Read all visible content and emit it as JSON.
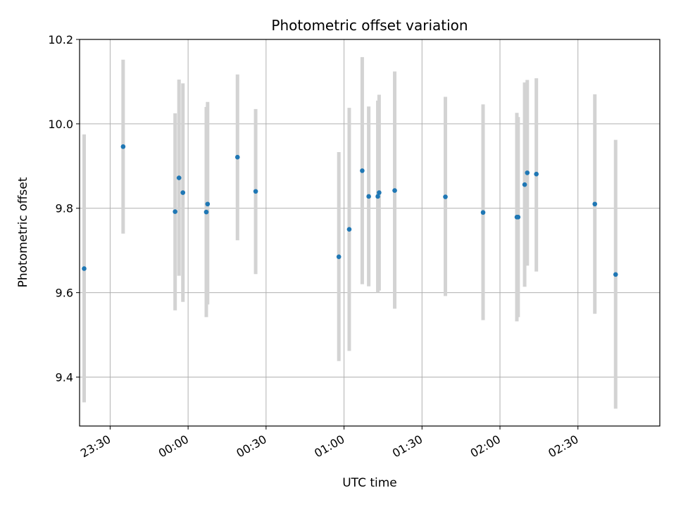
{
  "chart_data": {
    "type": "scatter",
    "title": "Photometric offset variation",
    "xlabel": "UTC time",
    "ylabel": "Photometric offset",
    "x_ticks": [
      "23:30",
      "00:00",
      "00:30",
      "01:00",
      "01:30",
      "02:00",
      "02:30"
    ],
    "y_ticks": [
      "9.4",
      "9.6",
      "9.8",
      "10.0",
      "10.2"
    ],
    "grid": true,
    "series": [
      {
        "marker_color": "#1f77b4",
        "errorbar_color": "#d3d3d3",
        "points": [
          {
            "time": "23:20:00",
            "value": 9.657,
            "low": 9.34,
            "high": 9.975
          },
          {
            "time": "23:35:00",
            "value": 9.946,
            "low": 9.74,
            "high": 10.152
          },
          {
            "time": "23:55:00",
            "value": 9.792,
            "low": 9.558,
            "high": 10.025
          },
          {
            "time": "23:56:30",
            "value": 9.872,
            "low": 9.64,
            "high": 10.105
          },
          {
            "time": "23:58:00",
            "value": 9.837,
            "low": 9.578,
            "high": 10.096
          },
          {
            "time": "00:07:00",
            "value": 9.791,
            "low": 9.542,
            "high": 10.04
          },
          {
            "time": "00:07:30",
            "value": 9.81,
            "low": 9.572,
            "high": 10.052
          },
          {
            "time": "00:19:00",
            "value": 9.921,
            "low": 9.724,
            "high": 10.117
          },
          {
            "time": "00:26:00",
            "value": 9.84,
            "low": 9.644,
            "high": 10.035
          },
          {
            "time": "00:58:00",
            "value": 9.685,
            "low": 9.438,
            "high": 9.933
          },
          {
            "time": "01:02:00",
            "value": 9.75,
            "low": 9.462,
            "high": 10.038
          },
          {
            "time": "01:07:00",
            "value": 9.889,
            "low": 9.62,
            "high": 10.158
          },
          {
            "time": "01:09:30",
            "value": 9.828,
            "low": 9.615,
            "high": 10.041
          },
          {
            "time": "01:13:00",
            "value": 9.828,
            "low": 9.6,
            "high": 10.055
          },
          {
            "time": "01:13:30",
            "value": 9.837,
            "low": 9.605,
            "high": 10.069
          },
          {
            "time": "01:19:30",
            "value": 9.842,
            "low": 9.562,
            "high": 10.124
          },
          {
            "time": "01:39:00",
            "value": 9.827,
            "low": 9.592,
            "high": 10.064
          },
          {
            "time": "01:53:30",
            "value": 9.79,
            "low": 9.535,
            "high": 10.046
          },
          {
            "time": "02:06:30",
            "value": 9.779,
            "low": 9.532,
            "high": 10.026
          },
          {
            "time": "02:07:00",
            "value": 9.779,
            "low": 9.542,
            "high": 10.016
          },
          {
            "time": "02:09:30",
            "value": 9.856,
            "low": 9.614,
            "high": 10.098
          },
          {
            "time": "02:10:30",
            "value": 9.884,
            "low": 9.664,
            "high": 10.104
          },
          {
            "time": "02:14:00",
            "value": 9.881,
            "low": 9.65,
            "high": 10.108
          },
          {
            "time": "02:36:30",
            "value": 9.81,
            "low": 9.55,
            "high": 10.07
          },
          {
            "time": "02:44:30",
            "value": 9.643,
            "low": 9.325,
            "high": 9.962
          }
        ]
      }
    ]
  }
}
